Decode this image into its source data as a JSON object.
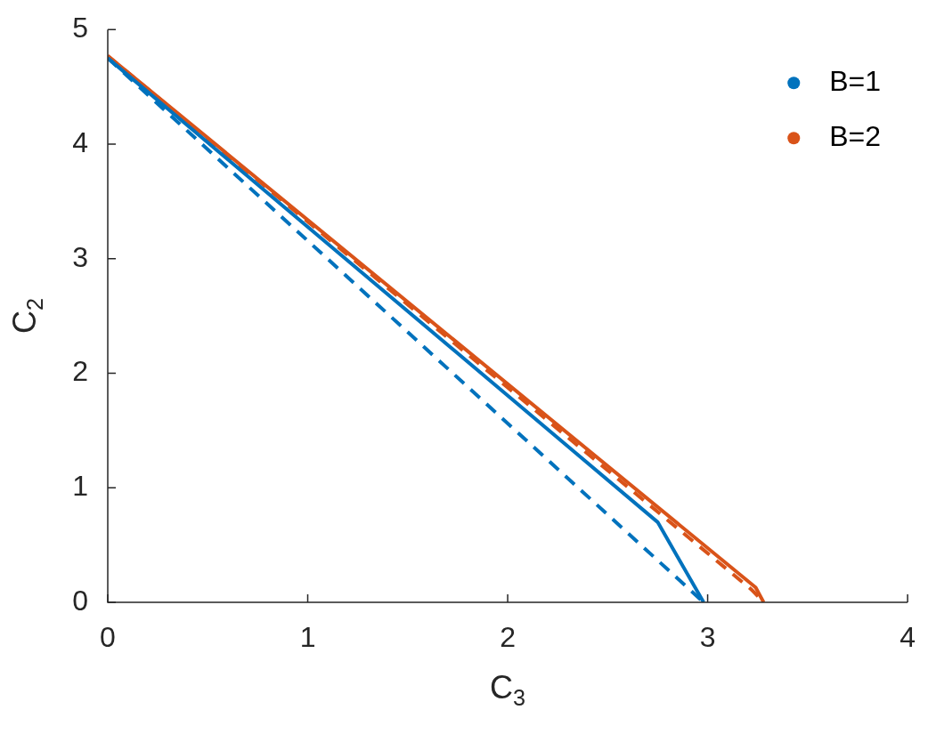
{
  "chart_data": {
    "type": "line",
    "xlabel": "C$_{3}$",
    "ylabel": "C$_{2}$",
    "xlim": [
      0,
      4
    ],
    "xticks": [
      0,
      1,
      2,
      3,
      4
    ],
    "ylim": [
      0,
      5
    ],
    "yticks": [
      0,
      1,
      2,
      3,
      4,
      5
    ],
    "grid": false,
    "legend": "top right",
    "marker": "none",
    "series": [
      {
        "name": "B=1",
        "color": "#0072bd",
        "line_style": "solid",
        "x": [
          0,
          2.75,
          2.98
        ],
        "values": [
          4.75,
          0.7,
          0
        ]
      },
      {
        "color": "#0072bd",
        "line_style": "dashed",
        "x": [
          0,
          2.98
        ],
        "values": [
          4.75,
          0
        ]
      },
      {
        "name": "B=2",
        "color": "#d95319",
        "line_style": "solid",
        "x": [
          0,
          3.24,
          3.28
        ],
        "values": [
          4.77,
          0.13,
          0
        ]
      },
      {
        "color": "#d95319",
        "line_style": "dashed",
        "x": [
          0,
          3.22,
          3.28
        ],
        "values": [
          4.77,
          0.11,
          0
        ]
      }
    ]
  }
}
